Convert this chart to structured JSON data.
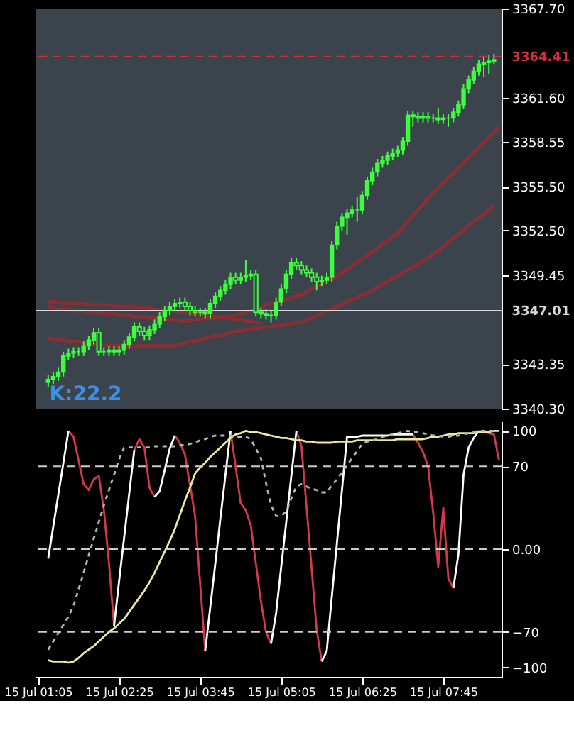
{
  "chart_data": [
    {
      "type": "candlestick",
      "color": "#3dff3d",
      "categories": [
        null,
        null,
        null,
        null,
        null,
        null,
        null,
        null,
        null,
        null,
        null,
        null,
        null,
        null,
        null,
        null,
        null,
        null,
        null,
        null,
        null,
        null,
        null,
        null,
        null,
        null,
        null,
        null,
        null,
        null,
        null,
        null,
        null,
        null,
        null,
        null,
        null,
        null,
        null,
        null,
        null,
        null,
        null,
        null,
        null,
        null,
        null,
        null,
        null,
        null,
        null,
        null,
        null,
        null,
        null,
        null,
        null,
        null,
        null,
        null,
        null,
        null,
        null,
        null,
        null,
        null,
        null,
        null,
        null,
        null,
        null,
        null,
        null,
        null,
        null,
        null,
        null,
        null,
        null,
        null,
        null,
        null,
        null,
        null,
        null,
        null,
        null,
        null,
        null,
        null,
        null,
        null
      ],
      "ohlc": [
        null,
        null,
        [
          3342.1,
          3342.6,
          3341.8,
          3342.3
        ],
        [
          3342.3,
          3342.8,
          3342.0,
          3342.5
        ],
        [
          3342.5,
          3343.1,
          3342.2,
          3342.8
        ],
        [
          3342.8,
          3344.2,
          3342.5,
          3343.9
        ],
        [
          3343.9,
          3344.4,
          3343.6,
          3344.1
        ],
        [
          3344.1,
          3344.5,
          3343.8,
          3344.2
        ],
        [
          3344.2,
          3344.5,
          3343.9,
          3344.2
        ],
        [
          3344.2,
          3344.9,
          3343.9,
          3344.6
        ],
        [
          3344.6,
          3345.3,
          3344.3,
          3345.0
        ],
        [
          3345.0,
          3345.8,
          3344.7,
          3345.5
        ],
        [
          3345.5,
          3345.8,
          3343.9,
          3344.2
        ],
        [
          3344.2,
          3344.5,
          3343.9,
          3344.2
        ],
        [
          3344.2,
          3344.6,
          3343.9,
          3344.3
        ],
        [
          3344.3,
          3344.6,
          3343.9,
          3344.2
        ],
        [
          3344.2,
          3344.6,
          3343.9,
          3344.3
        ],
        [
          3344.3,
          3345.0,
          3344.0,
          3344.7
        ],
        [
          3344.7,
          3345.5,
          3344.4,
          3345.2
        ],
        [
          3345.2,
          3346.2,
          3344.9,
          3345.9
        ],
        [
          3345.9,
          3346.2,
          3345.3,
          3345.6
        ],
        [
          3345.6,
          3345.9,
          3345.0,
          3345.3
        ],
        [
          3345.3,
          3346.0,
          3345.0,
          3345.7
        ],
        [
          3345.7,
          3346.4,
          3345.4,
          3346.1
        ],
        [
          3346.1,
          3346.9,
          3345.8,
          3346.6
        ],
        [
          3346.6,
          3347.3,
          3346.3,
          3347.0
        ],
        [
          3347.0,
          3347.6,
          3346.7,
          3347.3
        ],
        [
          3347.3,
          3347.8,
          3347.0,
          3347.5
        ],
        [
          3347.5,
          3347.9,
          3347.2,
          3347.6
        ],
        [
          3347.6,
          3347.9,
          3347.0,
          3347.3
        ],
        [
          3347.3,
          3347.6,
          3346.7,
          3347.0
        ],
        [
          3347.0,
          3347.3,
          3346.6,
          3346.9
        ],
        [
          3346.9,
          3347.2,
          3346.6,
          3346.9
        ],
        [
          3346.9,
          3347.2,
          3346.5,
          3346.8
        ],
        [
          3346.8,
          3347.8,
          3346.5,
          3347.5
        ],
        [
          3347.5,
          3348.3,
          3347.2,
          3348.0
        ],
        [
          3348.0,
          3348.7,
          3347.7,
          3348.4
        ],
        [
          3348.4,
          3349.1,
          3348.1,
          3348.8
        ],
        [
          3348.8,
          3349.6,
          3348.5,
          3349.3
        ],
        [
          3349.3,
          3349.6,
          3348.8,
          3349.1
        ],
        [
          3349.1,
          3349.6,
          3348.8,
          3349.3
        ],
        [
          3349.3,
          3350.5,
          3349.0,
          3349.4
        ],
        [
          3349.4,
          3349.8,
          3349.1,
          3349.5
        ],
        [
          3349.5,
          3349.8,
          3346.6,
          3346.9
        ],
        [
          3346.9,
          3347.2,
          3346.5,
          3346.8
        ],
        [
          3346.8,
          3347.1,
          3346.4,
          3346.7
        ],
        [
          3346.7,
          3347.0,
          3346.2,
          3346.7
        ],
        [
          3346.7,
          3347.9,
          3346.4,
          3347.6
        ],
        [
          3347.6,
          3348.8,
          3347.3,
          3348.5
        ],
        [
          3348.5,
          3349.8,
          3348.2,
          3349.5
        ],
        [
          3349.5,
          3350.6,
          3349.2,
          3350.3
        ],
        [
          3350.3,
          3350.6,
          3349.8,
          3350.1
        ],
        [
          3350.1,
          3350.4,
          3349.5,
          3349.8
        ],
        [
          3349.8,
          3350.1,
          3349.3,
          3349.6
        ],
        [
          3349.6,
          3349.9,
          3349.0,
          3349.3
        ],
        [
          3349.3,
          3349.6,
          3348.4,
          3349.0
        ],
        [
          3349.0,
          3349.4,
          3348.7,
          3349.1
        ],
        [
          3349.1,
          3349.6,
          3348.8,
          3349.3
        ],
        [
          3349.3,
          3351.8,
          3349.0,
          3351.5
        ],
        [
          3351.5,
          3353.1,
          3351.2,
          3352.8
        ],
        [
          3352.8,
          3353.7,
          3352.5,
          3353.4
        ],
        [
          3353.4,
          3354.0,
          3352.2,
          3353.7
        ],
        [
          3353.7,
          3354.2,
          3353.4,
          3353.9
        ],
        [
          3353.9,
          3354.8,
          3353.1,
          3353.9
        ],
        [
          3353.9,
          3355.2,
          3353.6,
          3354.9
        ],
        [
          3354.9,
          3356.2,
          3354.6,
          3355.9
        ],
        [
          3355.9,
          3356.8,
          3355.6,
          3356.5
        ],
        [
          3356.5,
          3357.4,
          3356.2,
          3357.1
        ],
        [
          3357.1,
          3357.6,
          3356.8,
          3357.3
        ],
        [
          3357.3,
          3357.9,
          3357.0,
          3357.6
        ],
        [
          3357.6,
          3358.1,
          3357.3,
          3357.8
        ],
        [
          3357.8,
          3358.3,
          3357.5,
          3358.0
        ],
        [
          3358.0,
          3358.9,
          3357.7,
          3358.6
        ],
        [
          3358.6,
          3360.7,
          3358.3,
          3360.4
        ],
        [
          3360.4,
          3360.7,
          3359.6,
          3360.3
        ],
        [
          3360.3,
          3360.6,
          3359.9,
          3360.2
        ],
        [
          3360.2,
          3360.6,
          3359.9,
          3360.3
        ],
        [
          3360.3,
          3360.6,
          3359.9,
          3360.2
        ],
        [
          3360.2,
          3360.5,
          3359.9,
          3360.2
        ],
        [
          3360.2,
          3360.9,
          3359.8,
          3360.1
        ],
        [
          3360.1,
          3360.5,
          3359.8,
          3360.2
        ],
        [
          3360.2,
          3360.5,
          3359.6,
          3360.2
        ],
        [
          3360.2,
          3360.9,
          3359.9,
          3360.6
        ],
        [
          3360.6,
          3361.4,
          3360.3,
          3361.1
        ],
        [
          3361.1,
          3362.5,
          3360.8,
          3362.2
        ],
        [
          3362.2,
          3363.1,
          3361.9,
          3362.8
        ],
        [
          3362.8,
          3363.7,
          3362.5,
          3363.4
        ],
        [
          3363.4,
          3364.2,
          3363.1,
          3363.9
        ],
        [
          3363.9,
          3364.4,
          3363.0,
          3364.0
        ],
        [
          3364.0,
          3364.5,
          3363.2,
          3364.1
        ],
        [
          3364.1,
          3364.6,
          3363.9,
          3364.2
        ],
        null
      ],
      "series": [
        {
          "type": "line",
          "color": "#8a2e36",
          "values": [
            null,
            null,
            3347.2,
            3347.2,
            3347.1,
            3347.1,
            3347.1,
            3347.0,
            3347.0,
            3347.0,
            3346.9,
            3346.9,
            3346.9,
            3346.8,
            3346.8,
            3346.8,
            3346.7,
            3346.7,
            3346.7,
            3346.6,
            3346.6,
            3346.6,
            3346.5,
            3346.5,
            3346.5,
            3346.4,
            3346.4,
            3346.4,
            3346.3,
            3346.3,
            3346.3,
            3346.4,
            3346.4,
            3346.5,
            3346.5,
            3346.5,
            3346.6,
            3346.6,
            3346.6,
            3346.7,
            3346.8,
            3346.9,
            3347.0,
            3347.1,
            3347.2,
            3347.4,
            3347.5,
            3347.6,
            3347.7,
            3347.8,
            3347.9,
            3348.0,
            3348.1,
            3348.3,
            3348.5,
            3348.7,
            3348.8,
            3349.0,
            3349.2,
            3349.4,
            3349.6,
            3349.8,
            3350.1,
            3350.3,
            3350.6,
            3350.8,
            3351.1,
            3351.3,
            3351.6,
            3351.8,
            3352.1,
            3352.3,
            3352.7,
            3353.1,
            3353.5,
            3353.9,
            3354.3,
            3354.7,
            3355.1,
            3355.4,
            3355.8,
            3356.1,
            3356.4,
            3356.8,
            3357.1,
            3357.5,
            3357.8,
            3358.2,
            3358.5,
            3358.9,
            3359.2,
            3359.6
          ]
        },
        {
          "type": "line",
          "color": "#8a2e36",
          "values": [
            null,
            null,
            3345.1,
            3345.1,
            3345.0,
            3345.0,
            3344.9,
            3344.9,
            3344.9,
            3344.8,
            3344.8,
            3344.7,
            3344.7,
            3344.7,
            3344.6,
            3344.6,
            3344.6,
            3344.6,
            3344.6,
            3344.6,
            3344.6,
            3344.6,
            3344.6,
            3344.6,
            3344.6,
            3344.6,
            3344.6,
            3344.6,
            3344.7,
            3344.8,
            3344.9,
            3344.9,
            3345.0,
            3345.1,
            3345.2,
            3345.3,
            3345.3,
            3345.4,
            3345.5,
            3345.6,
            3345.6,
            3345.7,
            3345.7,
            3345.8,
            3345.8,
            3345.9,
            3345.9,
            3346.0,
            3346.0,
            3346.1,
            3346.1,
            3346.2,
            3346.2,
            3346.4,
            3346.5,
            3346.7,
            3346.8,
            3347.0,
            3347.1,
            3347.3,
            3347.4,
            3347.6,
            3347.8,
            3347.9,
            3348.1,
            3348.2,
            3348.4,
            3348.6,
            3348.8,
            3349.0,
            3349.2,
            3349.4,
            3349.6,
            3349.8,
            3350.0,
            3350.2,
            3350.4,
            3350.6,
            3350.9,
            3351.1,
            3351.4,
            3351.7,
            3352.0,
            3352.2,
            3352.5,
            3352.8,
            3353.1,
            3353.4,
            3353.6,
            3353.9,
            3354.2,
            null
          ]
        },
        {
          "type": "line",
          "color": "#8a2e36",
          "values": [
            null,
            null,
            3347.6,
            3347.6,
            3347.6,
            3347.5,
            3347.5,
            3347.5,
            3347.5,
            3347.5,
            3347.4,
            3347.4,
            3347.4,
            3347.4,
            3347.4,
            3347.3,
            3347.3,
            3347.3,
            3347.3,
            3347.3,
            3347.2,
            3347.2,
            3347.2,
            3347.1,
            3347.1,
            3347.0,
            3347.0,
            3347.0,
            3346.9,
            3346.9,
            3346.8,
            3346.8,
            3346.8,
            3346.7,
            3346.7,
            3346.6,
            3346.6,
            3346.5,
            3346.5,
            3346.4,
            3346.4,
            3346.3,
            3346.3,
            3346.2,
            3346.2,
            null,
            null,
            null,
            null,
            null,
            null,
            null,
            null,
            null,
            null,
            null,
            null,
            null,
            null,
            null,
            null,
            null,
            null,
            null,
            null,
            null,
            null,
            null,
            null,
            null,
            null,
            null,
            null,
            null,
            null,
            null,
            null,
            null,
            null,
            null,
            null,
            null,
            null,
            null,
            null,
            null,
            null,
            null,
            null,
            null,
            null,
            null
          ]
        }
      ],
      "ylim": [
        3340.3,
        3367.7
      ],
      "yticks": [
        {
          "value": 3340.3,
          "label": "3340.30"
        },
        {
          "value": 3343.35,
          "label": "3343.35"
        },
        {
          "value": 3349.45,
          "label": "3349.45"
        },
        {
          "value": 3352.5,
          "label": "3352.50"
        },
        {
          "value": 3355.5,
          "label": "3355.50"
        },
        {
          "value": 3358.55,
          "label": "3358.55"
        },
        {
          "value": 3361.6,
          "label": "3361.60"
        },
        {
          "value": 3367.7,
          "label": "3367.70"
        }
      ],
      "tick_labels": "y",
      "ref_lines": [
        {
          "axis": "y",
          "value": 3364.41,
          "label": "3364.41",
          "color": "#d0303c",
          "line_style": "dashed"
        },
        {
          "axis": "y",
          "value": 3347.01,
          "label": "3347.01",
          "color": "#d8d8d8",
          "line_style": "solid"
        }
      ],
      "annotations": [
        "K:22.2"
      ]
    },
    {
      "type": "line",
      "categories": [
        "15 Jul 01:05",
        null,
        null,
        null,
        null,
        null,
        null,
        null,
        null,
        null,
        null,
        null,
        null,
        null,
        null,
        null,
        "15 Jul 02:25",
        null,
        null,
        null,
        null,
        null,
        null,
        null,
        null,
        null,
        null,
        null,
        null,
        null,
        null,
        null,
        "15 Jul 03:45",
        null,
        null,
        null,
        null,
        null,
        null,
        null,
        null,
        null,
        null,
        null,
        null,
        null,
        null,
        null,
        "15 Jul 05:05",
        null,
        null,
        null,
        null,
        null,
        null,
        null,
        null,
        null,
        null,
        null,
        null,
        null,
        null,
        null,
        "15 Jul 06:25",
        null,
        null,
        null,
        null,
        null,
        null,
        null,
        null,
        null,
        null,
        null,
        null,
        null,
        null,
        null,
        "15 Jul 07:45",
        null,
        null,
        null,
        null,
        null,
        null,
        null,
        null,
        null,
        null,
        null
      ],
      "series": [
        {
          "color": "#d23a48",
          "values": [
            null,
            null,
            null,
            null,
            null,
            null,
            100,
            95,
            75,
            55,
            50,
            59,
            62,
            33,
            -12,
            -65,
            null,
            null,
            null,
            84,
            93,
            86,
            52,
            44,
            null,
            null,
            null,
            96,
            90,
            80,
            54,
            28,
            -29,
            -86,
            null,
            null,
            null,
            null,
            100,
            70,
            39,
            33,
            20,
            -12,
            -44,
            -70,
            -80,
            null,
            null,
            null,
            null,
            100,
            87,
            36,
            -16,
            -68,
            -95,
            null,
            null,
            null,
            null,
            null,
            null,
            null,
            null,
            null,
            null,
            null,
            null,
            null,
            null,
            null,
            null,
            null,
            97,
            90,
            82,
            70,
            31,
            -15,
            35,
            -25,
            -33,
            null,
            null,
            null,
            null,
            100,
            99,
            98,
            97,
            75
          ]
        },
        {
          "color": "#ffffff",
          "values": [
            null,
            null,
            -8,
            19,
            46,
            73,
            100,
            null,
            null,
            null,
            null,
            null,
            null,
            null,
            null,
            -65,
            -27,
            10,
            47,
            84,
            null,
            null,
            null,
            44,
            49,
            67,
            85,
            96,
            null,
            null,
            null,
            null,
            null,
            -86,
            -49,
            -12,
            26,
            63,
            100,
            null,
            null,
            null,
            null,
            null,
            null,
            null,
            -80,
            -54,
            -15,
            23,
            62,
            100,
            null,
            null,
            null,
            null,
            -95,
            -86,
            -40,
            5,
            50,
            95,
            95,
            95,
            96,
            96,
            96,
            96,
            96,
            96,
            97,
            97,
            97,
            97,
            97,
            null,
            null,
            null,
            null,
            null,
            null,
            null,
            -33,
            -4,
            63,
            86,
            94,
            100,
            null,
            null,
            null,
            null
          ]
        },
        {
          "color": "#eee8a0",
          "values": [
            null,
            null,
            -94,
            -95,
            -95,
            -95,
            -96,
            -95,
            -92,
            -88,
            -85,
            -82,
            -78,
            -74,
            -70,
            -67,
            -63,
            -59,
            -53,
            -47,
            -41,
            -35,
            -28,
            -20,
            -11,
            -2,
            7,
            17,
            29,
            41,
            52,
            64,
            69,
            73,
            78,
            82,
            86,
            90,
            94,
            97,
            98,
            100,
            99,
            99,
            98,
            97,
            96,
            95,
            94,
            94,
            93,
            92,
            92,
            91,
            91,
            90,
            90,
            90,
            90,
            91,
            91,
            91,
            91,
            92,
            92,
            92,
            92,
            92,
            92,
            92,
            92,
            93,
            93,
            93,
            93,
            93,
            93,
            94,
            95,
            95,
            96,
            97,
            97,
            98,
            98,
            98,
            98,
            99,
            99,
            99,
            100,
            100
          ]
        },
        {
          "color": "#a8c0a8",
          "line_style": "dotted",
          "values": [
            null,
            null,
            -85,
            -78,
            -71,
            -64,
            -57,
            -48,
            -34,
            -20,
            -5,
            9,
            23,
            37,
            50,
            63,
            76,
            86,
            86,
            86,
            86,
            86,
            86,
            87,
            87,
            87,
            87,
            87,
            88,
            88,
            89,
            90,
            92,
            93,
            95,
            96,
            96,
            96,
            96,
            95,
            95,
            95,
            93,
            85,
            77,
            56,
            37,
            28,
            28,
            32,
            43,
            53,
            55,
            53,
            51,
            50,
            48,
            48,
            54,
            59,
            65,
            71,
            77,
            83,
            89,
            91,
            92,
            93,
            95,
            96,
            97,
            98,
            99,
            100,
            99,
            99,
            98,
            97,
            96,
            96,
            95,
            95,
            96,
            96,
            97,
            98,
            99,
            100,
            100,
            100,
            100,
            100
          ]
        }
      ],
      "ylim": [
        -108,
        108
      ],
      "yticks": [
        100,
        70,
        {
          "value": 0,
          "label": "0.00"
        },
        -70,
        -100
      ],
      "ref_lines": [
        {
          "axis": "y",
          "value": 70,
          "color": "#cccccc",
          "line_style": "dashed"
        },
        {
          "axis": "y",
          "value": 0,
          "color": "#cccccc",
          "line_style": "dashed"
        },
        {
          "axis": "y",
          "value": -70,
          "color": "#cccccc",
          "line_style": "dashed"
        }
      ]
    }
  ]
}
